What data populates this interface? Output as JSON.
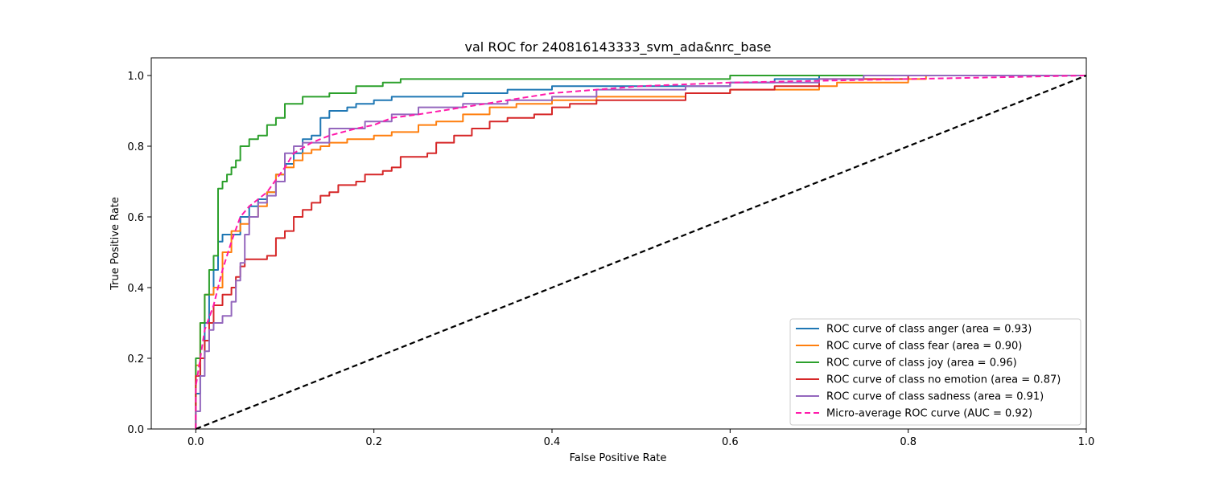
{
  "chart_data": {
    "type": "line",
    "title": "val ROC for 240816143333_svm_ada&nrc_base",
    "xlabel": "False Positive Rate",
    "ylabel": "True Positive Rate",
    "xlim": [
      -0.05,
      1.0
    ],
    "ylim": [
      0.0,
      1.05
    ],
    "xticks": [
      0.0,
      0.2,
      0.4,
      0.6,
      0.8,
      1.0
    ],
    "xtick_labels": [
      "0.0",
      "0.2",
      "0.4",
      "0.6",
      "0.8",
      "1.0"
    ],
    "yticks": [
      0.0,
      0.2,
      0.4,
      0.6,
      0.8,
      1.0
    ],
    "ytick_labels": [
      "0.0",
      "0.2",
      "0.4",
      "0.6",
      "0.8",
      "1.0"
    ],
    "grid": false,
    "legend_position": "lower-right",
    "series": [
      {
        "name": "ROC curve of class anger (area = 0.93)",
        "color": "#1f77b4",
        "dashed": false,
        "points": [
          [
            0,
            0
          ],
          [
            0,
            0.1
          ],
          [
            0.005,
            0.2
          ],
          [
            0.01,
            0.3
          ],
          [
            0.015,
            0.38
          ],
          [
            0.02,
            0.45
          ],
          [
            0.025,
            0.53
          ],
          [
            0.03,
            0.55
          ],
          [
            0.04,
            0.55
          ],
          [
            0.05,
            0.6
          ],
          [
            0.06,
            0.63
          ],
          [
            0.07,
            0.65
          ],
          [
            0.08,
            0.67
          ],
          [
            0.09,
            0.72
          ],
          [
            0.1,
            0.75
          ],
          [
            0.11,
            0.78
          ],
          [
            0.12,
            0.82
          ],
          [
            0.13,
            0.83
          ],
          [
            0.14,
            0.88
          ],
          [
            0.15,
            0.9
          ],
          [
            0.17,
            0.91
          ],
          [
            0.18,
            0.92
          ],
          [
            0.2,
            0.93
          ],
          [
            0.22,
            0.94
          ],
          [
            0.3,
            0.95
          ],
          [
            0.35,
            0.96
          ],
          [
            0.4,
            0.97
          ],
          [
            0.6,
            0.98
          ],
          [
            0.65,
            0.99
          ],
          [
            0.7,
            1.0
          ],
          [
            1.0,
            1.0
          ]
        ]
      },
      {
        "name": "ROC curve of class fear (area = 0.90)",
        "color": "#ff7f0e",
        "dashed": false,
        "points": [
          [
            0,
            0
          ],
          [
            0,
            0.18
          ],
          [
            0.005,
            0.3
          ],
          [
            0.01,
            0.38
          ],
          [
            0.02,
            0.4
          ],
          [
            0.03,
            0.5
          ],
          [
            0.04,
            0.56
          ],
          [
            0.05,
            0.58
          ],
          [
            0.06,
            0.6
          ],
          [
            0.07,
            0.63
          ],
          [
            0.08,
            0.67
          ],
          [
            0.09,
            0.72
          ],
          [
            0.1,
            0.74
          ],
          [
            0.11,
            0.76
          ],
          [
            0.12,
            0.78
          ],
          [
            0.13,
            0.79
          ],
          [
            0.14,
            0.8
          ],
          [
            0.15,
            0.81
          ],
          [
            0.17,
            0.82
          ],
          [
            0.2,
            0.83
          ],
          [
            0.22,
            0.84
          ],
          [
            0.25,
            0.86
          ],
          [
            0.27,
            0.87
          ],
          [
            0.3,
            0.89
          ],
          [
            0.33,
            0.91
          ],
          [
            0.36,
            0.92
          ],
          [
            0.4,
            0.93
          ],
          [
            0.45,
            0.94
          ],
          [
            0.55,
            0.95
          ],
          [
            0.6,
            0.96
          ],
          [
            0.7,
            0.97
          ],
          [
            0.72,
            0.98
          ],
          [
            0.8,
            0.99
          ],
          [
            0.82,
            1.0
          ],
          [
            1.0,
            1.0
          ]
        ]
      },
      {
        "name": "ROC curve of class joy (area = 0.96)",
        "color": "#2ca02c",
        "dashed": false,
        "points": [
          [
            0,
            0
          ],
          [
            0,
            0.2
          ],
          [
            0.005,
            0.3
          ],
          [
            0.01,
            0.38
          ],
          [
            0.015,
            0.45
          ],
          [
            0.02,
            0.49
          ],
          [
            0.025,
            0.68
          ],
          [
            0.03,
            0.7
          ],
          [
            0.035,
            0.72
          ],
          [
            0.04,
            0.74
          ],
          [
            0.045,
            0.76
          ],
          [
            0.05,
            0.8
          ],
          [
            0.06,
            0.82
          ],
          [
            0.07,
            0.83
          ],
          [
            0.08,
            0.86
          ],
          [
            0.09,
            0.88
          ],
          [
            0.1,
            0.92
          ],
          [
            0.12,
            0.94
          ],
          [
            0.15,
            0.95
          ],
          [
            0.18,
            0.97
          ],
          [
            0.21,
            0.98
          ],
          [
            0.23,
            0.99
          ],
          [
            0.5,
            0.99
          ],
          [
            0.6,
            1.0
          ],
          [
            1.0,
            1.0
          ]
        ]
      },
      {
        "name": "ROC curve of class no emotion (area = 0.87)",
        "color": "#d62728",
        "dashed": false,
        "points": [
          [
            0,
            0
          ],
          [
            0,
            0.15
          ],
          [
            0.005,
            0.2
          ],
          [
            0.01,
            0.25
          ],
          [
            0.015,
            0.3
          ],
          [
            0.02,
            0.35
          ],
          [
            0.03,
            0.38
          ],
          [
            0.04,
            0.4
          ],
          [
            0.045,
            0.43
          ],
          [
            0.05,
            0.46
          ],
          [
            0.055,
            0.48
          ],
          [
            0.08,
            0.49
          ],
          [
            0.09,
            0.54
          ],
          [
            0.1,
            0.56
          ],
          [
            0.11,
            0.6
          ],
          [
            0.12,
            0.62
          ],
          [
            0.13,
            0.64
          ],
          [
            0.14,
            0.66
          ],
          [
            0.15,
            0.67
          ],
          [
            0.16,
            0.69
          ],
          [
            0.18,
            0.7
          ],
          [
            0.19,
            0.72
          ],
          [
            0.21,
            0.73
          ],
          [
            0.22,
            0.74
          ],
          [
            0.23,
            0.77
          ],
          [
            0.26,
            0.78
          ],
          [
            0.27,
            0.81
          ],
          [
            0.29,
            0.83
          ],
          [
            0.31,
            0.85
          ],
          [
            0.33,
            0.87
          ],
          [
            0.35,
            0.88
          ],
          [
            0.38,
            0.89
          ],
          [
            0.4,
            0.91
          ],
          [
            0.42,
            0.92
          ],
          [
            0.45,
            0.93
          ],
          [
            0.55,
            0.95
          ],
          [
            0.6,
            0.96
          ],
          [
            0.65,
            0.97
          ],
          [
            0.7,
            0.99
          ],
          [
            0.8,
            1.0
          ],
          [
            1.0,
            1.0
          ]
        ]
      },
      {
        "name": "ROC curve of class sadness (area = 0.91)",
        "color": "#9467bd",
        "dashed": false,
        "points": [
          [
            0,
            0
          ],
          [
            0,
            0.05
          ],
          [
            0.005,
            0.15
          ],
          [
            0.01,
            0.22
          ],
          [
            0.015,
            0.28
          ],
          [
            0.02,
            0.3
          ],
          [
            0.03,
            0.32
          ],
          [
            0.04,
            0.36
          ],
          [
            0.045,
            0.42
          ],
          [
            0.05,
            0.47
          ],
          [
            0.055,
            0.55
          ],
          [
            0.06,
            0.6
          ],
          [
            0.07,
            0.64
          ],
          [
            0.08,
            0.66
          ],
          [
            0.09,
            0.7
          ],
          [
            0.1,
            0.78
          ],
          [
            0.11,
            0.8
          ],
          [
            0.12,
            0.81
          ],
          [
            0.15,
            0.85
          ],
          [
            0.19,
            0.87
          ],
          [
            0.22,
            0.89
          ],
          [
            0.25,
            0.91
          ],
          [
            0.3,
            0.92
          ],
          [
            0.35,
            0.93
          ],
          [
            0.4,
            0.94
          ],
          [
            0.45,
            0.96
          ],
          [
            0.55,
            0.97
          ],
          [
            0.6,
            0.98
          ],
          [
            0.7,
            0.99
          ],
          [
            0.75,
            1.0
          ],
          [
            1.0,
            1.0
          ]
        ]
      },
      {
        "name": "Micro-average ROC curve (AUC = 0.92)",
        "color": "#ff1aab",
        "dashed": true,
        "points": [
          [
            0,
            0
          ],
          [
            0,
            0.12
          ],
          [
            0.005,
            0.2
          ],
          [
            0.01,
            0.28
          ],
          [
            0.02,
            0.35
          ],
          [
            0.03,
            0.45
          ],
          [
            0.04,
            0.53
          ],
          [
            0.05,
            0.6
          ],
          [
            0.06,
            0.63
          ],
          [
            0.08,
            0.67
          ],
          [
            0.1,
            0.74
          ],
          [
            0.11,
            0.78
          ],
          [
            0.13,
            0.81
          ],
          [
            0.15,
            0.83
          ],
          [
            0.18,
            0.85
          ],
          [
            0.2,
            0.86
          ],
          [
            0.22,
            0.88
          ],
          [
            0.25,
            0.89
          ],
          [
            0.3,
            0.91
          ],
          [
            0.35,
            0.93
          ],
          [
            0.4,
            0.95
          ],
          [
            0.5,
            0.97
          ],
          [
            0.6,
            0.98
          ],
          [
            0.8,
            0.99
          ],
          [
            1.0,
            1.0
          ]
        ]
      },
      {
        "name": "",
        "color": "#000000",
        "dashed": true,
        "diagonal": true,
        "points": [
          [
            0,
            0
          ],
          [
            1,
            1
          ]
        ]
      }
    ]
  }
}
